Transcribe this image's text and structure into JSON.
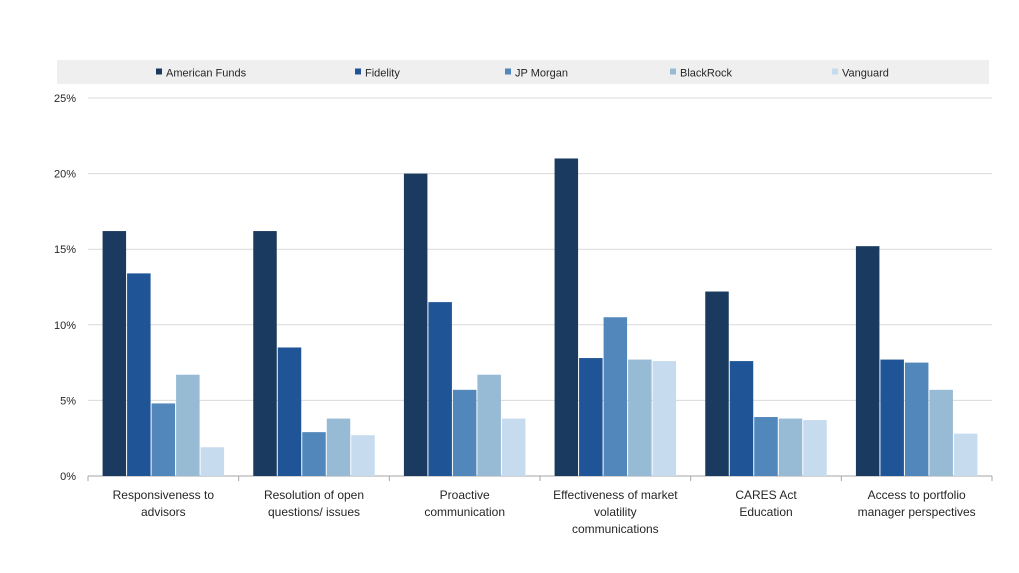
{
  "chart_data": {
    "type": "bar",
    "title": "",
    "xlabel": "",
    "ylabel": "",
    "ylim": [
      0,
      25
    ],
    "yticks": [
      "0%",
      "5%",
      "10%",
      "15%",
      "20%",
      "25%"
    ],
    "grid": true,
    "legend_position": "top",
    "categories": [
      [
        "Responsiveness to",
        "advisors"
      ],
      [
        "Resolution of open",
        "questions/ issues"
      ],
      [
        "Proactive",
        "communication"
      ],
      [
        "Effectiveness of market",
        "volatility",
        "communications"
      ],
      [
        "CARES Act",
        "Education"
      ],
      [
        "Access to portfolio",
        "manager perspectives"
      ]
    ],
    "series": [
      {
        "name": "American Funds",
        "color": "#1b3a5f",
        "values": [
          16.2,
          16.2,
          20.0,
          21.0,
          12.2,
          15.2
        ]
      },
      {
        "name": "Fidelity",
        "color": "#1f5496",
        "values": [
          13.4,
          8.5,
          11.5,
          7.8,
          7.6,
          7.7
        ]
      },
      {
        "name": "JP Morgan",
        "color": "#5187bb",
        "values": [
          4.8,
          2.9,
          5.7,
          10.5,
          3.9,
          7.5
        ]
      },
      {
        "name": "BlackRock",
        "color": "#97bad5",
        "values": [
          6.7,
          3.8,
          6.7,
          7.7,
          3.8,
          5.7
        ]
      },
      {
        "name": "Vanguard",
        "color": "#c6dbed",
        "values": [
          1.9,
          2.7,
          3.8,
          7.6,
          3.7,
          2.8
        ]
      }
    ]
  }
}
